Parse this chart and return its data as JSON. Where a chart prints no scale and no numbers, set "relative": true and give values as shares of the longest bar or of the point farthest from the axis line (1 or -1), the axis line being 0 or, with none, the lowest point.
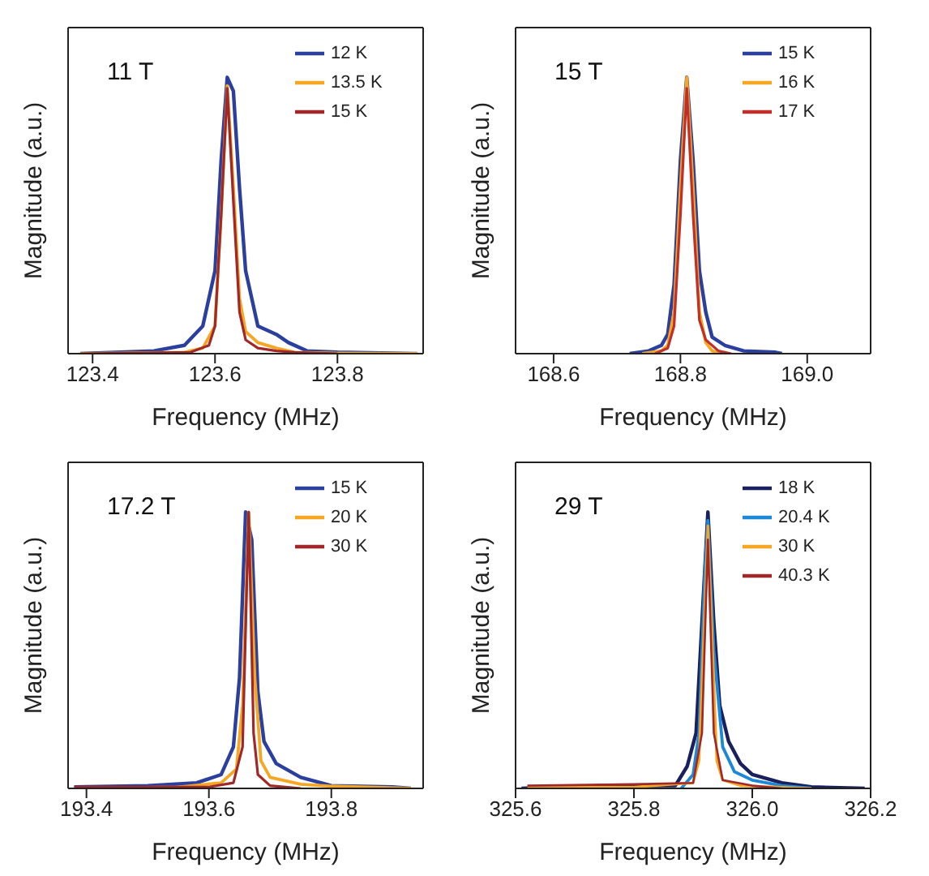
{
  "chart_data": [
    {
      "type": "line",
      "relative": true,
      "xlabel": "Frequency (MHz)",
      "ylabel": "Magnitude (a.u.)",
      "annotations": [
        "11 T"
      ],
      "xlim": [
        123.36,
        123.94
      ],
      "xticks": [
        123.4,
        123.6,
        123.8
      ],
      "legend": "top right",
      "marker": "none",
      "line_style": "solid",
      "series": [
        {
          "name": "12 K",
          "color": "#2b3f9e",
          "x": [
            123.38,
            123.5,
            123.55,
            123.58,
            123.6,
            123.61,
            123.62,
            123.63,
            123.64,
            123.65,
            123.67,
            123.7,
            123.72,
            123.75,
            123.8,
            123.93
          ],
          "values": [
            0,
            0.01,
            0.03,
            0.1,
            0.3,
            0.7,
            1,
            0.95,
            0.6,
            0.3,
            0.1,
            0.07,
            0.04,
            0.01,
            0.005,
            0
          ]
        },
        {
          "name": "13.5 K",
          "color": "#f5a623",
          "x": [
            123.38,
            123.55,
            123.58,
            123.6,
            123.61,
            123.62,
            123.63,
            123.64,
            123.65,
            123.67,
            123.7,
            123.73,
            123.8,
            123.93
          ],
          "values": [
            0,
            0.005,
            0.02,
            0.1,
            0.5,
            0.97,
            0.6,
            0.2,
            0.08,
            0.04,
            0.02,
            0.005,
            0.002,
            0
          ]
        },
        {
          "name": "15 K",
          "color": "#a0282a",
          "x": [
            123.38,
            123.56,
            123.59,
            123.6,
            123.61,
            123.62,
            123.63,
            123.64,
            123.65,
            123.67,
            123.7,
            123.73,
            123.8
          ],
          "values": [
            0,
            0.005,
            0.03,
            0.1,
            0.5,
            0.96,
            0.55,
            0.15,
            0.05,
            0.02,
            0.01,
            0.005,
            0
          ]
        }
      ]
    },
    {
      "type": "line",
      "relative": true,
      "xlabel": "Frequency (MHz)",
      "ylabel": "Magnitude (a.u.)",
      "annotations": [
        "15 T"
      ],
      "xlim": [
        168.54,
        169.1
      ],
      "xticks": [
        168.6,
        168.8,
        {
          "value": 169,
          "label": "169.0"
        }
      ],
      "legend": "top right",
      "marker": "none",
      "line_style": "solid",
      "series": [
        {
          "name": "15 K",
          "color": "#2b3f9e",
          "x": [
            168.72,
            168.75,
            168.77,
            168.78,
            168.79,
            168.8,
            168.81,
            168.82,
            168.83,
            168.84,
            168.85,
            168.87,
            168.9,
            168.95,
            168.96
          ],
          "values": [
            0,
            0.01,
            0.03,
            0.07,
            0.25,
            0.7,
            1,
            0.7,
            0.3,
            0.15,
            0.06,
            0.03,
            0.01,
            0.005,
            0
          ]
        },
        {
          "name": "16 K",
          "color": "#f5a623",
          "x": [
            168.74,
            168.77,
            168.78,
            168.79,
            168.8,
            168.81,
            168.82,
            168.83,
            168.84,
            168.85,
            168.87
          ],
          "values": [
            0,
            0.01,
            0.03,
            0.15,
            0.6,
            1,
            0.6,
            0.15,
            0.04,
            0.01,
            0
          ]
        },
        {
          "name": "17 K",
          "color": "#c0302a",
          "x": [
            168.76,
            168.78,
            168.79,
            168.8,
            168.81,
            168.82,
            168.83,
            168.84,
            168.86,
            168.88
          ],
          "values": [
            0,
            0.02,
            0.1,
            0.5,
            0.96,
            0.5,
            0.12,
            0.05,
            0.01,
            0
          ]
        }
      ]
    },
    {
      "type": "line",
      "relative": true,
      "xlabel": "Frequency (MHz)",
      "ylabel": "Magnitude (a.u.)",
      "annotations": [
        "17.2 T"
      ],
      "xlim": [
        193.37,
        193.95
      ],
      "xticks": [
        193.4,
        193.6,
        193.8
      ],
      "legend": "top right",
      "marker": "none",
      "line_style": "solid",
      "series": [
        {
          "name": "15 K",
          "color": "#2b3f9e",
          "x": [
            193.38,
            193.5,
            193.58,
            193.62,
            193.64,
            193.65,
            193.66,
            193.67,
            193.68,
            193.69,
            193.71,
            193.75,
            193.8,
            193.9,
            193.93
          ],
          "values": [
            0.005,
            0.01,
            0.02,
            0.05,
            0.15,
            0.4,
            1,
            0.9,
            0.35,
            0.17,
            0.09,
            0.04,
            0.01,
            0.005,
            0
          ]
        },
        {
          "name": "20 K",
          "color": "#f5a623",
          "x": [
            193.38,
            193.55,
            193.62,
            193.645,
            193.655,
            193.665,
            193.675,
            193.685,
            193.7,
            193.75,
            193.8,
            193.93
          ],
          "values": [
            0,
            0.005,
            0.02,
            0.07,
            0.3,
            1,
            0.4,
            0.1,
            0.04,
            0.015,
            0.008,
            0
          ]
        },
        {
          "name": "30 K",
          "color": "#a0282a",
          "x": [
            193.38,
            193.6,
            193.64,
            193.655,
            193.665,
            193.673,
            193.68,
            193.7,
            193.75
          ],
          "values": [
            0.005,
            0.005,
            0.02,
            0.15,
            1,
            0.2,
            0.05,
            0.01,
            0
          ]
        }
      ]
    },
    {
      "type": "line",
      "relative": true,
      "xlabel": "Frequency (MHz)",
      "ylabel": "Magnitude (a.u.)",
      "annotations": [
        "29 T"
      ],
      "xlim": [
        325.6,
        326.2
      ],
      "xticks": [
        325.6,
        325.8,
        {
          "value": 326,
          "label": "326.0"
        },
        326.2
      ],
      "legend": "top right",
      "marker": "none",
      "line_style": "solid",
      "series": [
        {
          "name": "18 K",
          "color": "#1a1f5e",
          "x": [
            325.61,
            325.75,
            325.87,
            325.89,
            325.905,
            325.915,
            325.925,
            325.935,
            325.945,
            325.96,
            325.98,
            326.0,
            326.05,
            326.1,
            326.19
          ],
          "values": [
            0,
            0.01,
            0.01,
            0.08,
            0.2,
            0.6,
            1,
            0.6,
            0.3,
            0.17,
            0.09,
            0.05,
            0.02,
            0.005,
            0
          ]
        },
        {
          "name": "20.4 K",
          "color": "#1e88d8",
          "x": [
            325.88,
            325.9,
            325.91,
            325.92,
            325.925,
            325.935,
            325.95,
            325.97,
            326.0,
            326.05,
            326.1
          ],
          "values": [
            0,
            0.05,
            0.2,
            0.8,
            0.97,
            0.5,
            0.15,
            0.06,
            0.03,
            0.01,
            0
          ]
        },
        {
          "name": "30 K",
          "color": "#f5a623",
          "x": [
            325.62,
            325.8,
            325.9,
            325.91,
            325.925,
            325.94,
            325.95,
            325.98,
            326.1
          ],
          "values": [
            0.005,
            0.005,
            0.02,
            0.1,
            0.95,
            0.1,
            0.03,
            0.01,
            0
          ]
        },
        {
          "name": "40.3 K",
          "color": "#a0282a",
          "x": [
            325.62,
            325.8,
            325.9,
            325.915,
            325.925,
            325.935,
            325.95,
            326.0,
            326.05
          ],
          "values": [
            0.01,
            0.015,
            0.02,
            0.2,
            0.9,
            0.2,
            0.03,
            0.01,
            0
          ]
        }
      ]
    }
  ]
}
